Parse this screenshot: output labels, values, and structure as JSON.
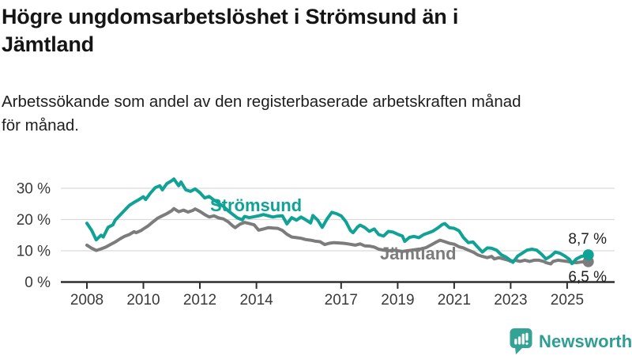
{
  "header": {
    "title": "Högre ungdomsarbetslöshet i Strömsund än i\nJämtland",
    "subtitle": "Arbetssökande som andel av den registerbaserade arbetskraften månad\nför månad."
  },
  "logo": {
    "text": "Newsworthy",
    "icon": "newsworthy-speech-bubble-bar-chart-icon",
    "color": "#2f9e92"
  },
  "colors": {
    "accent_teal": "#10a295",
    "series_gray": "#7c7c7c",
    "grid": "#dbdbdb",
    "axis": "#2e2e2e",
    "tick_label": "#3a3a3a",
    "value_label": "#1f1f1f"
  },
  "chart_data": {
    "type": "line",
    "title": "Högre ungdomsarbetslöshet i Strömsund än i Jämtland",
    "subtitle": "Arbetssökande som andel av den registerbaserade arbetskraften månad för månad.",
    "unit": "%",
    "grid": "horizontal",
    "legend": "inline-labels",
    "x_axis": {
      "ticks": [
        2008,
        2010,
        2012,
        2014,
        2017,
        2019,
        2021,
        2023,
        2025
      ],
      "range": [
        2007.1,
        2026.7
      ]
    },
    "y_axis": {
      "ticks": [
        0,
        10,
        20,
        30
      ],
      "tick_labels": [
        "0 %",
        "10 %",
        "20 %",
        "30 %"
      ],
      "range": [
        0,
        34
      ]
    },
    "series": [
      {
        "name": "Strömsund",
        "color": "#10a295",
        "end_label": "8,7 %",
        "end_value": 8.7,
        "points": [
          [
            2008.0,
            18.8
          ],
          [
            2008.17,
            16.5
          ],
          [
            2008.33,
            13.5
          ],
          [
            2008.5,
            15.0
          ],
          [
            2008.58,
            14.4
          ],
          [
            2008.75,
            17.5
          ],
          [
            2008.92,
            18.3
          ],
          [
            2009.0,
            19.8
          ],
          [
            2009.17,
            21.4
          ],
          [
            2009.33,
            22.9
          ],
          [
            2009.5,
            24.5
          ],
          [
            2009.67,
            25.5
          ],
          [
            2009.83,
            26.3
          ],
          [
            2010.0,
            27.3
          ],
          [
            2010.08,
            26.4
          ],
          [
            2010.25,
            28.5
          ],
          [
            2010.42,
            30.2
          ],
          [
            2010.58,
            30.8
          ],
          [
            2010.67,
            29.5
          ],
          [
            2010.83,
            31.5
          ],
          [
            2011.0,
            32.4
          ],
          [
            2011.08,
            33.0
          ],
          [
            2011.25,
            30.8
          ],
          [
            2011.33,
            32.0
          ],
          [
            2011.5,
            29.5
          ],
          [
            2011.67,
            29.0
          ],
          [
            2011.83,
            29.8
          ],
          [
            2012.0,
            28.6
          ],
          [
            2012.17,
            26.9
          ],
          [
            2012.33,
            27.4
          ],
          [
            2012.5,
            26.2
          ],
          [
            2012.67,
            25.2
          ],
          [
            2012.83,
            24.2
          ],
          [
            2013.0,
            22.8
          ],
          [
            2013.17,
            21.6
          ],
          [
            2013.33,
            20.5
          ],
          [
            2013.5,
            19.9
          ],
          [
            2013.58,
            21.0
          ],
          [
            2013.75,
            20.6
          ],
          [
            2013.92,
            20.9
          ],
          [
            2014.08,
            21.2
          ],
          [
            2014.25,
            21.6
          ],
          [
            2014.42,
            21.2
          ],
          [
            2014.58,
            20.8
          ],
          [
            2014.75,
            21.1
          ],
          [
            2014.92,
            21.2
          ],
          [
            2015.08,
            18.6
          ],
          [
            2015.25,
            20.6
          ],
          [
            2015.42,
            19.8
          ],
          [
            2015.58,
            20.8
          ],
          [
            2015.75,
            19.9
          ],
          [
            2015.92,
            18.9
          ],
          [
            2016.0,
            21.3
          ],
          [
            2016.17,
            19.8
          ],
          [
            2016.33,
            17.5
          ],
          [
            2016.5,
            20.2
          ],
          [
            2016.67,
            22.3
          ],
          [
            2016.83,
            21.9
          ],
          [
            2017.0,
            21.2
          ],
          [
            2017.17,
            19.3
          ],
          [
            2017.33,
            16.5
          ],
          [
            2017.42,
            15.8
          ],
          [
            2017.58,
            17.6
          ],
          [
            2017.67,
            18.2
          ],
          [
            2017.83,
            17.5
          ],
          [
            2018.0,
            16.2
          ],
          [
            2018.17,
            17.0
          ],
          [
            2018.33,
            15.2
          ],
          [
            2018.5,
            14.7
          ],
          [
            2018.67,
            16.2
          ],
          [
            2018.83,
            16.0
          ],
          [
            2019.0,
            15.3
          ],
          [
            2019.17,
            14.7
          ],
          [
            2019.25,
            13.0
          ],
          [
            2019.42,
            14.3
          ],
          [
            2019.58,
            14.6
          ],
          [
            2019.75,
            14.2
          ],
          [
            2019.92,
            15.2
          ],
          [
            2020.08,
            15.7
          ],
          [
            2020.25,
            16.3
          ],
          [
            2020.42,
            17.3
          ],
          [
            2020.58,
            18.4
          ],
          [
            2020.67,
            18.7
          ],
          [
            2020.83,
            17.4
          ],
          [
            2021.0,
            17.2
          ],
          [
            2021.17,
            16.4
          ],
          [
            2021.33,
            14.2
          ],
          [
            2021.5,
            12.6
          ],
          [
            2021.67,
            12.8
          ],
          [
            2021.83,
            11.2
          ],
          [
            2022.0,
            9.6
          ],
          [
            2022.17,
            10.9
          ],
          [
            2022.33,
            10.8
          ],
          [
            2022.5,
            10.2
          ],
          [
            2022.67,
            8.7
          ],
          [
            2022.83,
            8.0
          ],
          [
            2023.0,
            6.9
          ],
          [
            2023.08,
            6.3
          ],
          [
            2023.25,
            8.3
          ],
          [
            2023.42,
            9.3
          ],
          [
            2023.58,
            10.2
          ],
          [
            2023.75,
            10.5
          ],
          [
            2023.92,
            10.2
          ],
          [
            2024.08,
            9.0
          ],
          [
            2024.25,
            7.4
          ],
          [
            2024.42,
            8.3
          ],
          [
            2024.58,
            9.6
          ],
          [
            2024.75,
            9.2
          ],
          [
            2024.92,
            8.3
          ],
          [
            2025.08,
            7.3
          ],
          [
            2025.17,
            5.9
          ],
          [
            2025.33,
            7.4
          ],
          [
            2025.5,
            8.2
          ],
          [
            2025.67,
            8.5
          ],
          [
            2025.75,
            8.7
          ]
        ]
      },
      {
        "name": "Jämtland",
        "color": "#7c7c7c",
        "end_label": "6,5 %",
        "end_value": 6.5,
        "points": [
          [
            2008.0,
            11.8
          ],
          [
            2008.17,
            10.8
          ],
          [
            2008.33,
            10.1
          ],
          [
            2008.5,
            10.6
          ],
          [
            2008.67,
            11.2
          ],
          [
            2008.83,
            12.0
          ],
          [
            2009.0,
            12.8
          ],
          [
            2009.17,
            13.8
          ],
          [
            2009.33,
            14.6
          ],
          [
            2009.5,
            15.2
          ],
          [
            2009.67,
            16.1
          ],
          [
            2009.75,
            15.8
          ],
          [
            2009.92,
            16.5
          ],
          [
            2010.0,
            17.0
          ],
          [
            2010.17,
            18.0
          ],
          [
            2010.33,
            19.2
          ],
          [
            2010.5,
            20.4
          ],
          [
            2010.67,
            21.2
          ],
          [
            2010.83,
            21.9
          ],
          [
            2011.0,
            22.8
          ],
          [
            2011.08,
            23.5
          ],
          [
            2011.25,
            22.5
          ],
          [
            2011.42,
            23.0
          ],
          [
            2011.58,
            22.4
          ],
          [
            2011.75,
            22.9
          ],
          [
            2011.83,
            23.4
          ],
          [
            2012.0,
            22.6
          ],
          [
            2012.17,
            21.6
          ],
          [
            2012.33,
            20.8
          ],
          [
            2012.5,
            21.2
          ],
          [
            2012.67,
            20.5
          ],
          [
            2012.83,
            20.2
          ],
          [
            2013.0,
            19.3
          ],
          [
            2013.17,
            17.9
          ],
          [
            2013.25,
            17.4
          ],
          [
            2013.42,
            18.5
          ],
          [
            2013.58,
            19.1
          ],
          [
            2013.75,
            18.7
          ],
          [
            2013.92,
            18.3
          ],
          [
            2014.08,
            16.6
          ],
          [
            2014.25,
            17.0
          ],
          [
            2014.42,
            17.4
          ],
          [
            2014.58,
            17.3
          ],
          [
            2014.75,
            17.2
          ],
          [
            2014.92,
            16.5
          ],
          [
            2015.08,
            15.3
          ],
          [
            2015.25,
            14.4
          ],
          [
            2015.42,
            14.2
          ],
          [
            2015.58,
            14.0
          ],
          [
            2015.75,
            13.6
          ],
          [
            2015.92,
            13.4
          ],
          [
            2016.08,
            13.1
          ],
          [
            2016.25,
            12.9
          ],
          [
            2016.42,
            12.0
          ],
          [
            2016.58,
            12.4
          ],
          [
            2016.75,
            12.6
          ],
          [
            2016.92,
            12.5
          ],
          [
            2017.08,
            12.4
          ],
          [
            2017.25,
            12.2
          ],
          [
            2017.5,
            11.8
          ],
          [
            2017.67,
            12.2
          ],
          [
            2017.83,
            11.6
          ],
          [
            2018.0,
            11.5
          ],
          [
            2018.17,
            11.2
          ],
          [
            2018.33,
            10.5
          ],
          [
            2018.5,
            10.2
          ],
          [
            2018.67,
            10.0
          ],
          [
            2018.83,
            10.2
          ],
          [
            2019.0,
            10.0
          ],
          [
            2019.17,
            9.8
          ],
          [
            2019.33,
            10.0
          ],
          [
            2019.5,
            10.2
          ],
          [
            2019.67,
            10.4
          ],
          [
            2019.83,
            10.6
          ],
          [
            2020.0,
            11.0
          ],
          [
            2020.17,
            11.8
          ],
          [
            2020.33,
            12.6
          ],
          [
            2020.5,
            13.4
          ],
          [
            2020.67,
            12.9
          ],
          [
            2020.83,
            12.4
          ],
          [
            2021.0,
            12.1
          ],
          [
            2021.17,
            11.3
          ],
          [
            2021.33,
            10.9
          ],
          [
            2021.5,
            10.2
          ],
          [
            2021.67,
            9.6
          ],
          [
            2021.83,
            8.7
          ],
          [
            2022.0,
            8.2
          ],
          [
            2022.17,
            7.8
          ],
          [
            2022.33,
            8.2
          ],
          [
            2022.42,
            7.4
          ],
          [
            2022.58,
            7.8
          ],
          [
            2022.75,
            7.4
          ],
          [
            2022.92,
            7.0
          ],
          [
            2023.0,
            6.6
          ],
          [
            2023.17,
            7.0
          ],
          [
            2023.33,
            6.6
          ],
          [
            2023.5,
            7.0
          ],
          [
            2023.67,
            6.6
          ],
          [
            2023.83,
            7.0
          ],
          [
            2024.0,
            7.0
          ],
          [
            2024.17,
            6.6
          ],
          [
            2024.25,
            6.2
          ],
          [
            2024.42,
            5.8
          ],
          [
            2024.5,
            6.6
          ],
          [
            2024.67,
            7.0
          ],
          [
            2024.83,
            6.8
          ],
          [
            2025.0,
            6.6
          ],
          [
            2025.17,
            6.3
          ],
          [
            2025.33,
            6.2
          ],
          [
            2025.5,
            6.4
          ],
          [
            2025.67,
            6.5
          ],
          [
            2025.75,
            6.5
          ]
        ]
      }
    ]
  }
}
